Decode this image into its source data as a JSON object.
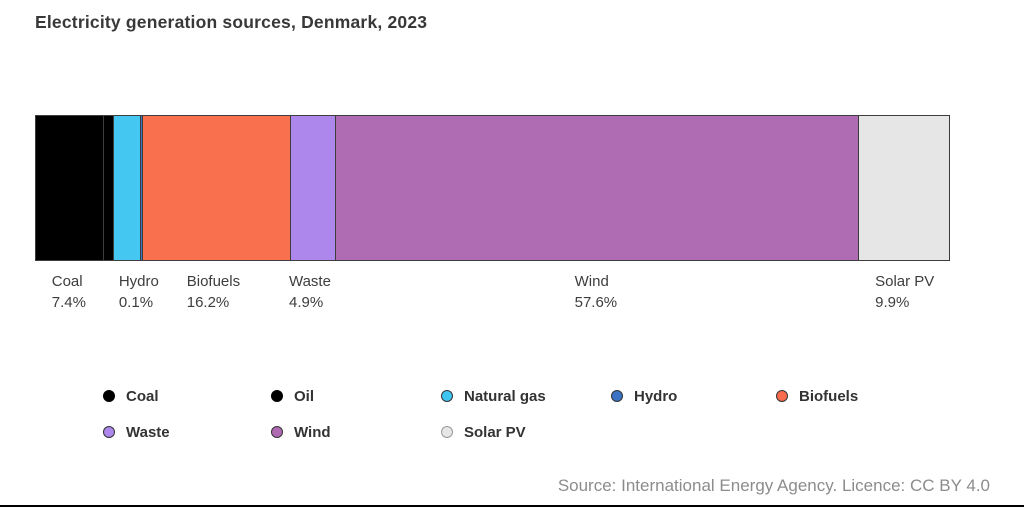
{
  "title": "Electricity generation sources, Denmark, 2023",
  "source": "Source: International Energy Agency. Licence: CC BY 4.0",
  "chart_data": {
    "type": "bar",
    "subtype": "single-stacked-horizontal-bar",
    "title": "Electricity generation sources, Denmark, 2023",
    "unit": "%",
    "xlim": [
      0,
      100
    ],
    "grid": false,
    "legend_position": "bottom",
    "segments": [
      {
        "name": "Coal",
        "value": 7.4,
        "pct_label": "7.4%",
        "color": "#000000",
        "label_shown": true,
        "estimated": false
      },
      {
        "name": "Oil",
        "value": 1.0,
        "pct_label": "",
        "color": "#000000",
        "label_shown": false,
        "estimated": true
      },
      {
        "name": "Natural gas",
        "value": 2.9,
        "pct_label": "",
        "color": "#44C8F2",
        "label_shown": false,
        "estimated": true
      },
      {
        "name": "Hydro",
        "value": 0.1,
        "pct_label": "0.1%",
        "color": "#3B72C4",
        "label_shown": true,
        "estimated": false
      },
      {
        "name": "Biofuels",
        "value": 16.2,
        "pct_label": "16.2%",
        "color": "#F9704E",
        "label_shown": true,
        "estimated": false
      },
      {
        "name": "Waste",
        "value": 4.9,
        "pct_label": "4.9%",
        "color": "#AD87EB",
        "label_shown": true,
        "estimated": false
      },
      {
        "name": "Wind",
        "value": 57.6,
        "pct_label": "57.6%",
        "color": "#B06CB3",
        "label_shown": true,
        "estimated": false
      },
      {
        "name": "Solar PV",
        "value": 9.9,
        "pct_label": "9.9%",
        "color": "#E6E6E6",
        "label_shown": true,
        "estimated": false
      }
    ],
    "legend": [
      {
        "label": "Coal",
        "color": "#000000",
        "ring": "#000000"
      },
      {
        "label": "Oil",
        "color": "#000000",
        "ring": "#000000"
      },
      {
        "label": "Natural gas",
        "color": "#3EC6F0",
        "ring": "#333333"
      },
      {
        "label": "Hydro",
        "color": "#3B72C4",
        "ring": "#333333"
      },
      {
        "label": "Biofuels",
        "color": "#F96B4D",
        "ring": "#333333"
      },
      {
        "label": "Waste",
        "color": "#AD87EB",
        "ring": "#333333"
      },
      {
        "label": "Wind",
        "color": "#AF6BB2",
        "ring": "#333333"
      },
      {
        "label": "Solar PV",
        "color": "#E6E6E6",
        "ring": "#999999"
      }
    ]
  }
}
